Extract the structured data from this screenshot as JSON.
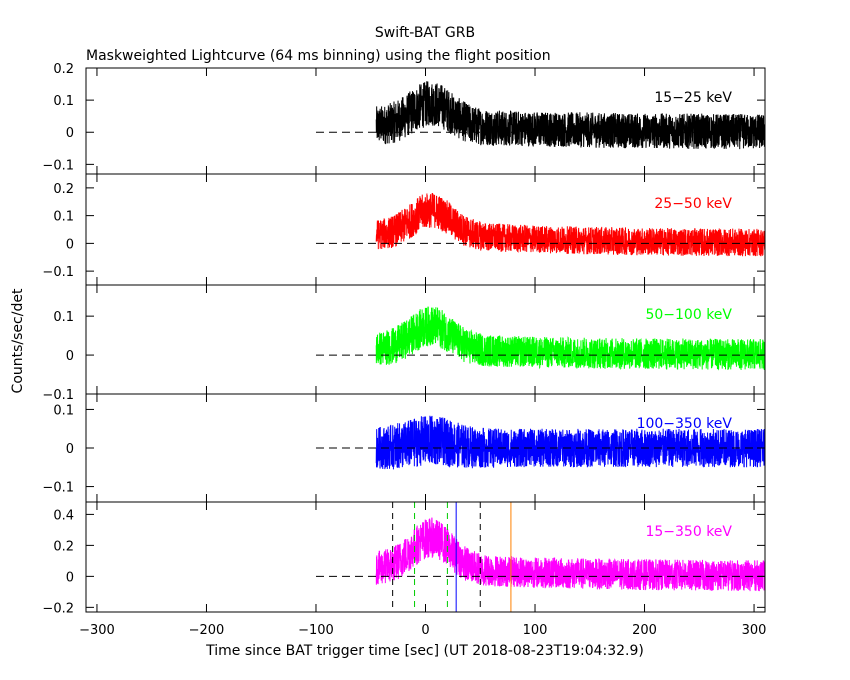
{
  "chart_data": {
    "type": "line",
    "title": "Swift-BAT GRB",
    "subtitle": "Maskweighted Lightcurve (64 ms binning) using the flight position",
    "xlabel": "Time since BAT trigger time [sec] (UT 2018-08-23T19:04:32.9)",
    "ylabel": "Counts/sec/det",
    "xlim": [
      -310,
      310
    ],
    "xticks": [
      -300,
      -200,
      -100,
      0,
      100,
      200,
      300
    ],
    "x_tick_labels": [
      "−300",
      "−200",
      "−100",
      "0",
      "100",
      "200",
      "300"
    ],
    "data_start": -45,
    "data_end": 310,
    "baseline_dashed_from": -100,
    "panels": [
      {
        "label": "15−25 keV",
        "color": "#000000",
        "ylim": [
          -0.13,
          0.2
        ],
        "yticks": [
          -0.1,
          0,
          0.1,
          0.2
        ],
        "ytick_labels": [
          "−0.1",
          "0",
          "0.1",
          "0.2"
        ],
        "noise": 0.055,
        "peak_amp": 0.07,
        "decay_level": 0.02
      },
      {
        "label": "25−50 keV",
        "color": "#ff0000",
        "ylim": [
          -0.15,
          0.25
        ],
        "yticks": [
          -0.1,
          0,
          0.1,
          0.2
        ],
        "ytick_labels": [
          "−0.1",
          "0",
          "0.1",
          "0.2"
        ],
        "noise": 0.05,
        "peak_amp": 0.09,
        "decay_level": 0.03
      },
      {
        "label": "50−100 keV",
        "color": "#00ff00",
        "ylim": [
          -0.1,
          0.18
        ],
        "yticks": [
          -0.1,
          0,
          0.1
        ],
        "ytick_labels": [
          "−0.1",
          "0",
          "0.1"
        ],
        "noise": 0.04,
        "peak_amp": 0.06,
        "decay_level": 0.015
      },
      {
        "label": "100−350 keV",
        "color": "#0000ff",
        "ylim": [
          -0.14,
          0.14
        ],
        "yticks": [
          -0.1,
          0,
          0.1
        ],
        "ytick_labels": [
          "−0.1",
          "0",
          "0.1"
        ],
        "noise": 0.05,
        "peak_amp": 0.02,
        "decay_level": 0.0
      },
      {
        "label": "15−350 keV",
        "color": "#ff00ff",
        "ylim": [
          -0.23,
          0.48
        ],
        "yticks": [
          -0.2,
          0,
          0.2,
          0.4
        ],
        "ytick_labels": [
          "−0.2",
          "0",
          "0.2",
          "0.4"
        ],
        "noise": 0.1,
        "peak_amp": 0.2,
        "decay_level": 0.05
      }
    ],
    "vertical_markers": [
      {
        "x": -30,
        "color": "#000000",
        "style": "dashed"
      },
      {
        "x": -10,
        "color": "#00cc00",
        "style": "dashed"
      },
      {
        "x": 20,
        "color": "#00cc00",
        "style": "dashed"
      },
      {
        "x": 28,
        "color": "#0000ff",
        "style": "solid"
      },
      {
        "x": 50,
        "color": "#000000",
        "style": "dashed"
      },
      {
        "x": 78,
        "color": "#ff8000",
        "style": "solid"
      }
    ]
  }
}
